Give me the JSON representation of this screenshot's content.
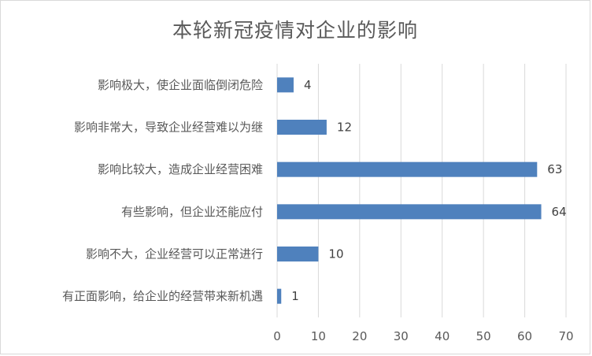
{
  "chart_data": {
    "type": "bar",
    "orientation": "horizontal",
    "title": "本轮新冠疫情对企业的影响",
    "categories": [
      "影响极大，使企业面临倒闭危险",
      "影响非常大，导致企业经营难以为继",
      "影响比较大，造成企业经营困难",
      "有些影响，但企业还能应付",
      "影响不大，企业经营可以正常进行",
      "有正面影响，给企业的经营带来新机遇"
    ],
    "values": [
      4,
      12,
      63,
      64,
      10,
      1
    ],
    "xlim": [
      0,
      70
    ],
    "x_ticks": [
      0,
      10,
      20,
      30,
      40,
      50,
      60,
      70
    ],
    "grid": true,
    "bar_color": "#4f81bd",
    "xlabel": "",
    "ylabel": ""
  }
}
